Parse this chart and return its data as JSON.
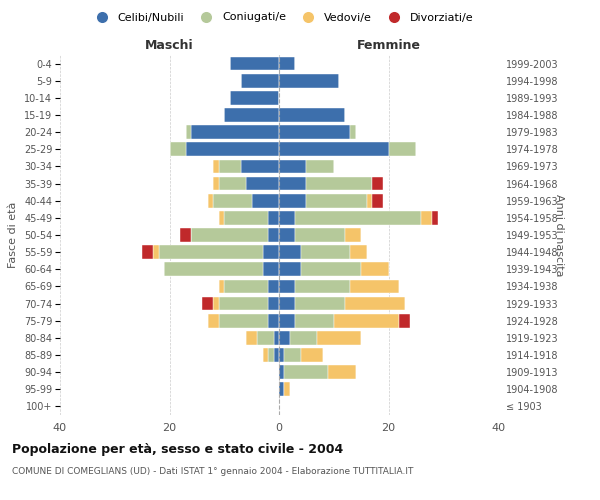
{
  "age_groups": [
    "100+",
    "95-99",
    "90-94",
    "85-89",
    "80-84",
    "75-79",
    "70-74",
    "65-69",
    "60-64",
    "55-59",
    "50-54",
    "45-49",
    "40-44",
    "35-39",
    "30-34",
    "25-29",
    "20-24",
    "15-19",
    "10-14",
    "5-9",
    "0-4"
  ],
  "birth_years": [
    "≤ 1903",
    "1904-1908",
    "1909-1913",
    "1914-1918",
    "1919-1923",
    "1924-1928",
    "1929-1933",
    "1934-1938",
    "1939-1943",
    "1944-1948",
    "1949-1953",
    "1954-1958",
    "1959-1963",
    "1964-1968",
    "1969-1973",
    "1974-1978",
    "1979-1983",
    "1984-1988",
    "1989-1993",
    "1994-1998",
    "1999-2003"
  ],
  "males": {
    "celibi": [
      0,
      0,
      0,
      1,
      1,
      2,
      2,
      2,
      3,
      3,
      2,
      2,
      5,
      6,
      7,
      17,
      16,
      10,
      9,
      7,
      9
    ],
    "coniugati": [
      0,
      0,
      0,
      1,
      3,
      9,
      9,
      8,
      18,
      19,
      14,
      8,
      7,
      5,
      4,
      3,
      1,
      0,
      0,
      0,
      0
    ],
    "vedovi": [
      0,
      0,
      0,
      1,
      2,
      2,
      1,
      1,
      0,
      1,
      0,
      1,
      1,
      1,
      1,
      0,
      0,
      0,
      0,
      0,
      0
    ],
    "divorziati": [
      0,
      0,
      0,
      0,
      0,
      0,
      2,
      0,
      0,
      2,
      2,
      0,
      0,
      0,
      0,
      0,
      0,
      0,
      0,
      0,
      0
    ]
  },
  "females": {
    "nubili": [
      0,
      1,
      1,
      1,
      2,
      3,
      3,
      3,
      4,
      4,
      3,
      3,
      5,
      5,
      5,
      20,
      13,
      12,
      0,
      11,
      3
    ],
    "coniugate": [
      0,
      0,
      8,
      3,
      5,
      7,
      9,
      10,
      11,
      9,
      9,
      23,
      11,
      12,
      5,
      5,
      1,
      0,
      0,
      0,
      0
    ],
    "vedove": [
      0,
      1,
      5,
      4,
      8,
      12,
      11,
      9,
      5,
      3,
      3,
      2,
      1,
      0,
      0,
      0,
      0,
      0,
      0,
      0,
      0
    ],
    "divorziate": [
      0,
      0,
      0,
      0,
      0,
      2,
      0,
      0,
      0,
      0,
      0,
      1,
      2,
      2,
      0,
      0,
      0,
      0,
      0,
      0,
      0
    ]
  },
  "colors": {
    "celibi": "#3d6fac",
    "coniugati": "#b5c99a",
    "vedovi": "#f5c469",
    "divorziati": "#c0292b"
  },
  "legend_labels": [
    "Celibi/Nubili",
    "Coniugati/e",
    "Vedovi/e",
    "Divorziati/e"
  ],
  "title": "Popolazione per età, sesso e stato civile - 2004",
  "subtitle": "COMUNE DI COMEGLIANS (UD) - Dati ISTAT 1° gennaio 2004 - Elaborazione TUTTITALIA.IT",
  "xlabel_left": "Maschi",
  "xlabel_right": "Femmine",
  "ylabel_left": "Fasce di età",
  "ylabel_right": "Anni di nascita",
  "xlim": 40,
  "background_color": "#ffffff"
}
